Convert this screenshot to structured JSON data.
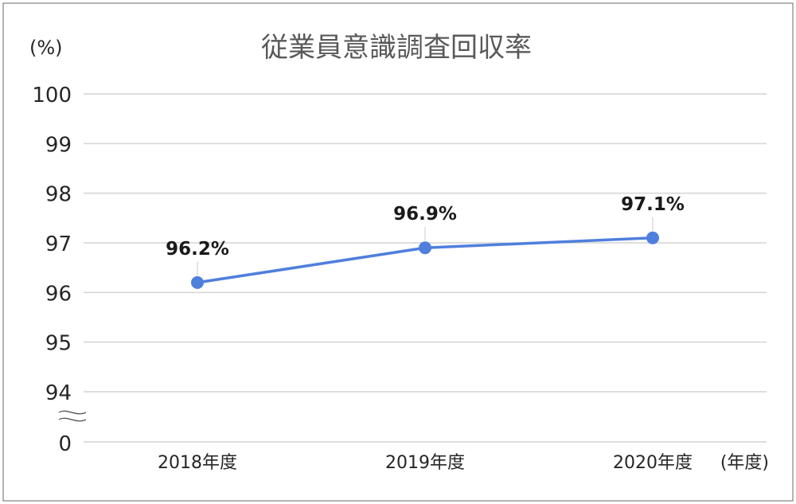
{
  "colors": {
    "series": "#4f7fdc",
    "grid": "#d4d4d4",
    "title": "#595959",
    "text": "#262626",
    "frame": "#9a9a9a"
  },
  "chart_data": {
    "type": "line",
    "title": "従業員意識調査回収率",
    "ylabel": "(%)",
    "xlabel": "(年度)",
    "categories": [
      "2018年度",
      "2019年度",
      "2020年度"
    ],
    "series": [
      {
        "values": [
          96.2,
          96.9,
          97.1
        ],
        "data_labels": [
          "96.2%",
          "96.9%",
          "97.1%"
        ]
      }
    ],
    "ylim": [
      94,
      100
    ],
    "yticks": [
      "100",
      "99",
      "98",
      "97",
      "96",
      "95",
      "94"
    ],
    "axis_break": true,
    "axis_floor_label": "0",
    "grid": true,
    "legend": "none",
    "markers": true
  }
}
